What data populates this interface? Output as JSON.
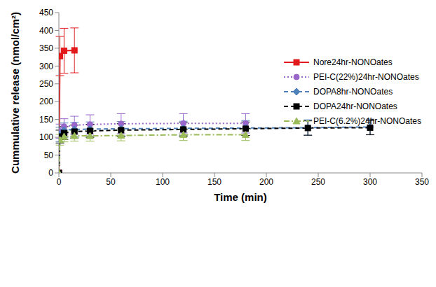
{
  "chart_data": {
    "type": "line",
    "x_label": "Time (min)",
    "y_label": "Cummulative release (nmol/cm²)",
    "x": [
      0,
      1,
      5,
      15,
      30,
      60,
      120,
      180,
      240,
      300
    ],
    "xlim": [
      0,
      350
    ],
    "xticks": [
      0,
      50,
      100,
      150,
      200,
      250,
      300,
      350
    ],
    "ylim": [
      0,
      450
    ],
    "yticks": [
      0,
      50,
      100,
      150,
      200,
      250,
      300,
      350,
      400,
      450
    ],
    "grid": false,
    "legend": "upper right",
    "series": [
      {
        "name": "Nore24hr-NONOates",
        "color": "#e31a1c",
        "marker": "square",
        "line_style": "solid",
        "values": [
          0,
          328,
          343,
          344,
          null,
          null,
          null,
          null,
          null,
          null
        ],
        "errors": [
          0,
          55,
          63,
          63,
          null,
          null,
          null,
          null,
          null,
          null
        ]
      },
      {
        "name": "PEI-C(22%)24hr-NONOates",
        "color": "#9966cc",
        "marker": "circle",
        "line_style": "dotted",
        "values": [
          0,
          117,
          130,
          134,
          136,
          138,
          139,
          139,
          null,
          null
        ],
        "errors": [
          0,
          20,
          22,
          25,
          27,
          28,
          27,
          27,
          null,
          null
        ]
      },
      {
        "name": "DOPA8hr-NONOates",
        "color": "#4f81bd",
        "marker": "diamond",
        "line_style": "dashed",
        "values": [
          0,
          108,
          120,
          122,
          123,
          124,
          125,
          126,
          127,
          129
        ],
        "errors": [
          0,
          20,
          20,
          20,
          20,
          20,
          20,
          21,
          22,
          22
        ]
      },
      {
        "name": "DOPA24hr-NONOates",
        "color": "#000000",
        "marker": "square",
        "line_style": "dashed",
        "values": [
          0,
          102,
          112,
          116,
          118,
          120,
          122,
          124,
          126,
          127
        ],
        "errors": [
          0,
          18,
          18,
          18,
          18,
          18,
          19,
          19,
          20,
          20
        ]
      },
      {
        "name": "PEI-C(6.2%)24hr-NONOates",
        "color": "#9bbb59",
        "marker": "triangle",
        "line_style": "dashdot",
        "values": [
          0,
          93,
          102,
          104,
          104,
          105,
          107,
          107,
          null,
          null
        ],
        "errors": [
          0,
          15,
          15,
          15,
          15,
          15,
          16,
          16,
          null,
          null
        ]
      }
    ]
  }
}
